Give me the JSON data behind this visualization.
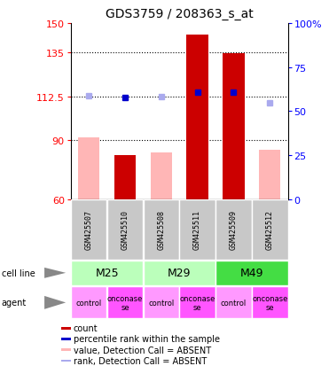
{
  "title": "GDS3759 / 208363_s_at",
  "samples": [
    "GSM425507",
    "GSM425510",
    "GSM425508",
    "GSM425511",
    "GSM425509",
    "GSM425512"
  ],
  "bar_values": [
    91.5,
    82.5,
    84.0,
    144.0,
    134.5,
    85.0
  ],
  "bar_absent": [
    true,
    false,
    true,
    false,
    false,
    true
  ],
  "rank_values": [
    113.0,
    112.0,
    112.5,
    114.5,
    114.5,
    109.0
  ],
  "rank_absent": [
    true,
    false,
    true,
    false,
    false,
    true
  ],
  "ylim_left": [
    60,
    150
  ],
  "yticks_left": [
    60,
    90,
    112.5,
    135,
    150
  ],
  "yticks_right": [
    0,
    25,
    50,
    75,
    100
  ],
  "gridlines": [
    90,
    112.5,
    135
  ],
  "bar_color_present": "#CC0000",
  "bar_color_absent": "#FFB6B6",
  "rank_color_present": "#0000CC",
  "rank_color_absent": "#AAAAEE",
  "cell_lines": [
    {
      "label": "M25",
      "start": 0,
      "end": 2,
      "color": "#BBFFBB"
    },
    {
      "label": "M29",
      "start": 2,
      "end": 4,
      "color": "#BBFFBB"
    },
    {
      "label": "M49",
      "start": 4,
      "end": 6,
      "color": "#44DD44"
    }
  ],
  "agents": [
    {
      "label": "control",
      "color": "#FF99FF"
    },
    {
      "label": "onconase\nse",
      "color": "#FF55FF"
    },
    {
      "label": "control",
      "color": "#FF99FF"
    },
    {
      "label": "onconase\nse",
      "color": "#FF55FF"
    },
    {
      "label": "control",
      "color": "#FF99FF"
    },
    {
      "label": "onconase\nse",
      "color": "#FF55FF"
    }
  ],
  "legend": [
    {
      "color": "#CC0000",
      "label": "count"
    },
    {
      "color": "#0000CC",
      "label": "percentile rank within the sample"
    },
    {
      "color": "#FFB6B6",
      "label": "value, Detection Call = ABSENT"
    },
    {
      "color": "#AAAAEE",
      "label": "rank, Detection Call = ABSENT"
    }
  ],
  "sample_bg": "#C8C8C8",
  "fig_w": 3.71,
  "fig_h": 4.14,
  "dpi": 100
}
